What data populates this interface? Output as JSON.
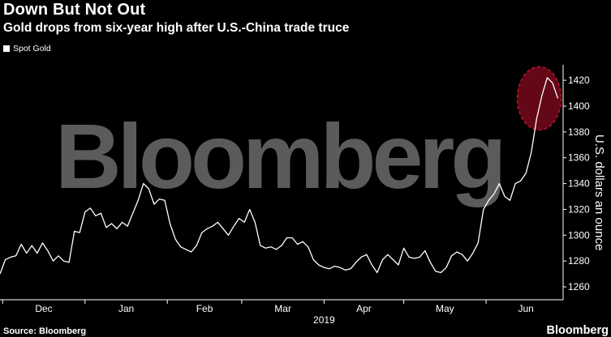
{
  "header": {
    "title": "Down But Not Out",
    "subtitle": "Gold drops from six-year high after U.S.-China trade truce"
  },
  "legend": {
    "label": "Spot Gold"
  },
  "footer": {
    "source": "Source: Bloomberg",
    "brand": "Bloomberg"
  },
  "watermark": {
    "text": "Bloomberg"
  },
  "colors": {
    "background": "#000000",
    "line": "#ffffff",
    "highlight": "#c8102e",
    "watermark": "#5b5b5b"
  },
  "chart_data": {
    "type": "line",
    "title": "Down But Not Out",
    "subtitle": "Gold drops from six-year high after U.S.-China trade truce",
    "xlabel": "2019",
    "ylabel": "U.S. dollars an ounce",
    "y_axis_position": "right",
    "ylim": [
      1250,
      1432
    ],
    "yticks": [
      1260,
      1280,
      1300,
      1320,
      1340,
      1360,
      1380,
      1400,
      1420
    ],
    "grid": false,
    "legend_position": "top-left",
    "x_axis": {
      "type": "date",
      "start": "2018-11-30",
      "end": "2019-06-30",
      "ticks": [
        {
          "label": "Dec",
          "date": "2018-12-01"
        },
        {
          "label": "Jan",
          "date": "2019-01-01"
        },
        {
          "label": "Feb",
          "date": "2019-02-01"
        },
        {
          "label": "Mar",
          "date": "2019-03-01"
        },
        {
          "label": "Apr",
          "date": "2019-04-01"
        },
        {
          "label": "May",
          "date": "2019-05-01"
        },
        {
          "label": "Jun",
          "date": "2019-06-01"
        }
      ],
      "year_label": "2019"
    },
    "highlight": {
      "shape": "ellipse",
      "center_date": "2019-06-21",
      "center_value": 1406,
      "description_type": "circled recent peak"
    },
    "series": [
      {
        "name": "Spot Gold",
        "x": [
          "2018-11-30",
          "2018-12-02",
          "2018-12-04",
          "2018-12-06",
          "2018-12-08",
          "2018-12-10",
          "2018-12-12",
          "2018-12-14",
          "2018-12-16",
          "2018-12-18",
          "2018-12-20",
          "2018-12-22",
          "2018-12-24",
          "2018-12-26",
          "2018-12-28",
          "2018-12-30",
          "2019-01-01",
          "2019-01-03",
          "2019-01-05",
          "2019-01-07",
          "2019-01-09",
          "2019-01-11",
          "2019-01-13",
          "2019-01-15",
          "2019-01-17",
          "2019-01-19",
          "2019-01-21",
          "2019-01-23",
          "2019-01-25",
          "2019-01-27",
          "2019-01-29",
          "2019-01-31",
          "2019-02-02",
          "2019-02-04",
          "2019-02-06",
          "2019-02-08",
          "2019-02-10",
          "2019-02-12",
          "2019-02-14",
          "2019-02-16",
          "2019-02-18",
          "2019-02-20",
          "2019-02-22",
          "2019-02-24",
          "2019-02-26",
          "2019-02-28",
          "2019-03-02",
          "2019-03-04",
          "2019-03-06",
          "2019-03-08",
          "2019-03-10",
          "2019-03-12",
          "2019-03-14",
          "2019-03-16",
          "2019-03-18",
          "2019-03-20",
          "2019-03-22",
          "2019-03-24",
          "2019-03-26",
          "2019-03-28",
          "2019-03-30",
          "2019-04-01",
          "2019-04-03",
          "2019-04-05",
          "2019-04-07",
          "2019-04-09",
          "2019-04-11",
          "2019-04-13",
          "2019-04-15",
          "2019-04-17",
          "2019-04-19",
          "2019-04-21",
          "2019-04-23",
          "2019-04-25",
          "2019-04-27",
          "2019-04-29",
          "2019-05-01",
          "2019-05-03",
          "2019-05-05",
          "2019-05-07",
          "2019-05-09",
          "2019-05-11",
          "2019-05-13",
          "2019-05-15",
          "2019-05-17",
          "2019-05-19",
          "2019-05-21",
          "2019-05-23",
          "2019-05-25",
          "2019-05-27",
          "2019-05-29",
          "2019-05-31",
          "2019-06-02",
          "2019-06-04",
          "2019-06-06",
          "2019-06-08",
          "2019-06-10",
          "2019-06-12",
          "2019-06-14",
          "2019-06-16",
          "2019-06-18",
          "2019-06-20",
          "2019-06-22",
          "2019-06-24",
          "2019-06-26",
          "2019-06-28"
        ],
        "values": [
          1270,
          1281,
          1283,
          1284,
          1293,
          1286,
          1292,
          1286,
          1294,
          1288,
          1280,
          1284,
          1280,
          1279,
          1303,
          1302,
          1318,
          1321,
          1315,
          1317,
          1306,
          1309,
          1305,
          1310,
          1307,
          1317,
          1327,
          1340,
          1336,
          1324,
          1328,
          1327,
          1309,
          1297,
          1291,
          1289,
          1287,
          1292,
          1302,
          1305,
          1307,
          1310,
          1305,
          1300,
          1307,
          1313,
          1310,
          1320,
          1310,
          1292,
          1290,
          1291,
          1289,
          1292,
          1298,
          1298,
          1293,
          1295,
          1291,
          1281,
          1277,
          1275,
          1274,
          1276,
          1275,
          1273,
          1274,
          1279,
          1283,
          1285,
          1277,
          1271,
          1281,
          1285,
          1281,
          1277,
          1290,
          1283,
          1282,
          1283,
          1288,
          1279,
          1272,
          1271,
          1275,
          1284,
          1287,
          1285,
          1280,
          1286,
          1294,
          1320,
          1327,
          1332,
          1340,
          1330,
          1327,
          1340,
          1342,
          1348,
          1364,
          1390,
          1408,
          1422,
          1418,
          1406
        ]
      }
    ]
  }
}
